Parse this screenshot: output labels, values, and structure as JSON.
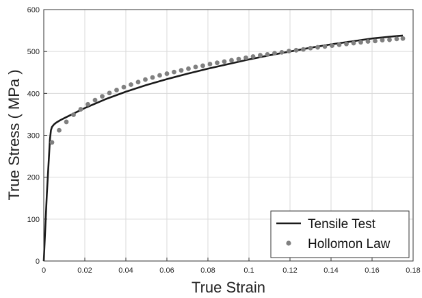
{
  "chart_data": {
    "type": "line",
    "xlabel": "True Strain",
    "ylabel": "True Stress ( MPa )",
    "xlim": [
      0,
      0.18
    ],
    "ylim": [
      0,
      600
    ],
    "xticks": [
      0,
      0.02,
      0.04,
      0.06,
      0.08,
      0.1,
      0.12,
      0.14,
      0.16,
      0.18
    ],
    "xtick_labels": [
      "0",
      "0.02",
      "0.04",
      "0.06",
      "0.08",
      "0.1",
      "0.12",
      "0.14",
      "0.16",
      "0.18"
    ],
    "yticks": [
      0,
      100,
      200,
      300,
      400,
      500,
      600
    ],
    "ytick_labels": [
      "0",
      "100",
      "200",
      "300",
      "400",
      "500",
      "600"
    ],
    "grid": true,
    "legend_position": "bottom-right",
    "series": [
      {
        "name": "Tensile Test",
        "style": "line",
        "color": "#1a1a1a",
        "x": [
          0,
          0.0015,
          0.003,
          0.0035,
          0.004,
          0.005,
          0.006,
          0.008,
          0.01,
          0.015,
          0.02,
          0.03,
          0.04,
          0.05,
          0.06,
          0.07,
          0.08,
          0.09,
          0.1,
          0.11,
          0.12,
          0.13,
          0.14,
          0.15,
          0.16,
          0.17,
          0.175
        ],
        "y": [
          0,
          160,
          290,
          312,
          320,
          326,
          330,
          336,
          341,
          353,
          365,
          386,
          404,
          420,
          434,
          447,
          459,
          470,
          481,
          491,
          500,
          509,
          517,
          524,
          531,
          536,
          538
        ]
      },
      {
        "name": "Hollomon Law",
        "style": "scatter",
        "color": "#808080",
        "x": [
          0.004,
          0.0075,
          0.011,
          0.0145,
          0.018,
          0.0215,
          0.025,
          0.0285,
          0.032,
          0.0355,
          0.039,
          0.0425,
          0.046,
          0.0495,
          0.053,
          0.0565,
          0.06,
          0.0635,
          0.067,
          0.0705,
          0.074,
          0.0775,
          0.081,
          0.0845,
          0.088,
          0.0915,
          0.095,
          0.0985,
          0.102,
          0.1055,
          0.109,
          0.1125,
          0.116,
          0.1195,
          0.123,
          0.1265,
          0.13,
          0.1335,
          0.137,
          0.1405,
          0.144,
          0.1475,
          0.151,
          0.1545,
          0.158,
          0.1615,
          0.165,
          0.1685,
          0.172,
          0.175
        ],
        "y": [
          283,
          312,
          332,
          349,
          362,
          374,
          384,
          393,
          401,
          408,
          415,
          421,
          427,
          433,
          438,
          443,
          447,
          451,
          455,
          459,
          463,
          466,
          470,
          473,
          476,
          479,
          482,
          485,
          488,
          491,
          493,
          496,
          498,
          501,
          503,
          505,
          508,
          510,
          512,
          514,
          516,
          518,
          520,
          522,
          524,
          525,
          527,
          528,
          530,
          531
        ]
      }
    ]
  }
}
